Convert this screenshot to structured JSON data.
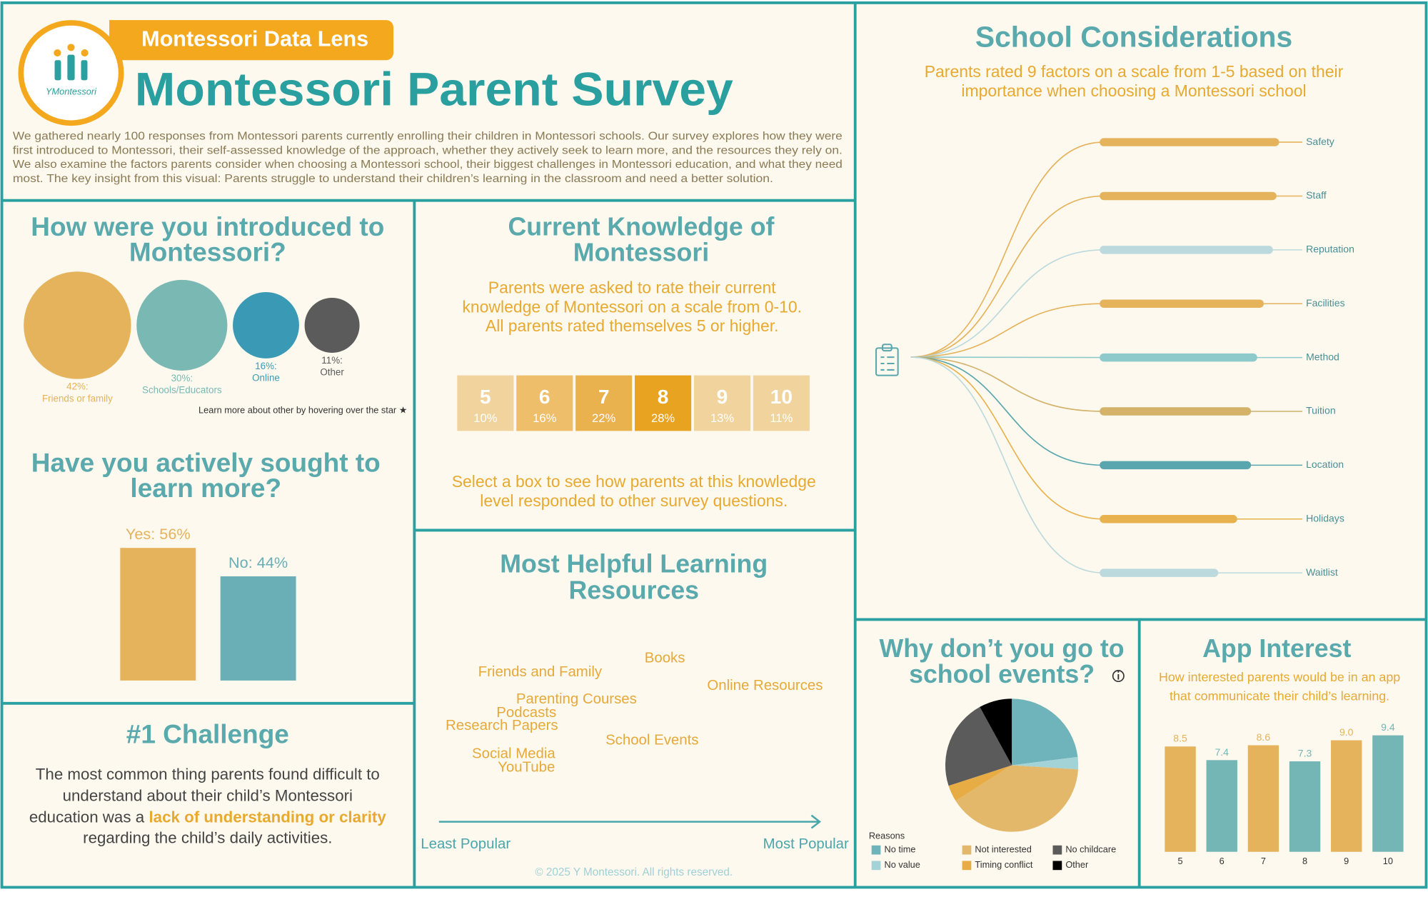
{
  "header": {
    "badge": "Montessori Data Lens",
    "title": "Montessori Parent Survey",
    "logo": "YMontessori",
    "intro": [
      "We gathered nearly 100 responses from Montessori parents currently enrolling their children in Montessori schools. Our survey explores how they were",
      "first introduced to Montessori, their self-assessed knowledge of the approach, whether they actively seek to learn more, and the resources they rely on.",
      "We also examine the factors parents consider when choosing a Montessori school, their biggest challenges in Montessori education, and what they need",
      "most. The key insight from this visual: Parents struggle to understand their children’s learning in the classroom and need a better solution."
    ]
  },
  "challenge": {
    "title": "#1 Challenge",
    "lines": [
      "The most common thing parents found difficult to",
      "understand about their child’s Montessori"
    ],
    "lead": "education was a",
    "highlight": "lack of understanding or clarity",
    "tail": "regarding the child’s daily activities."
  },
  "footer": "© 2025 Y Montessori. All rights reserved.",
  "chart_data": [
    {
      "type": "bubble",
      "title": [
        "How were you introduced to",
        "Montessori?"
      ],
      "categories": [
        "Friends or family",
        "Schools/Educators",
        "Online",
        "Other"
      ],
      "values": [
        42,
        30,
        16,
        11
      ],
      "value_labels": [
        "42%:",
        "30%:",
        "16%:",
        "11%:"
      ],
      "colors": [
        "#e5b35c",
        "#79b8b3",
        "#3a9ab5",
        "#5b5b5b"
      ],
      "note": "Learn more about other by hovering over the star ★"
    },
    {
      "type": "bar",
      "title": [
        "Have you actively sought to",
        "learn more?"
      ],
      "values": [
        56,
        44
      ],
      "value_labels": [
        "Yes: 56%",
        "No: 44%"
      ],
      "colors": [
        "#e5b35c",
        "#6aafb5"
      ]
    },
    {
      "type": "heatmap",
      "title": [
        "Current Knowledge of",
        "Montessori"
      ],
      "subtitle": [
        "Parents were asked to rate their current",
        "knowledge of Montessori on a scale from 0-10.",
        "All parents rated themselves 5 or higher."
      ],
      "categories": [
        "5",
        "6",
        "7",
        "8",
        "9",
        "10"
      ],
      "values": [
        10,
        16,
        22,
        28,
        13,
        11
      ],
      "value_labels": [
        "10%",
        "16%",
        "22%",
        "28%",
        "13%",
        "11%"
      ],
      "colors": [
        "#f1d49d",
        "#eebe6a",
        "#eab14f",
        "#e8a321",
        "#f1d49d",
        "#f1d49d"
      ],
      "note": [
        "Select a box to see how parents at this knowledge",
        "level responded to other survey questions."
      ]
    },
    {
      "type": "wordcloud",
      "title": [
        "Most Helpful Learning",
        "Resources"
      ],
      "words": [
        "Books",
        "Friends and Family",
        "Online Resources",
        "Parenting Courses",
        "Podcasts",
        "Research Papers",
        "School Events",
        "Social Media",
        "YouTube"
      ],
      "x_label_left": "Least Popular",
      "x_label_right": "Most Popular"
    },
    {
      "type": "bar",
      "orientation": "horizontal",
      "title": "School Considerations",
      "subtitle": [
        "Parents rated 9 factors on a scale from 1-5 based on their",
        "importance when choosing a Montessori school"
      ],
      "categories": [
        "Safety",
        "Staff",
        "Reputation",
        "Facilities",
        "Method",
        "Tuition",
        "Location",
        "Holidays",
        "Waitlist"
      ],
      "values": [
        4.7,
        4.63,
        4.53,
        4.28,
        4.1,
        3.93,
        3.93,
        3.55,
        3.03
      ],
      "colors": [
        "#e5b35c",
        "#e5b35c",
        "#bcd9dd",
        "#e5b35c",
        "#8ec9cc",
        "#d4b26a",
        "#5aa6ae",
        "#e8b24e",
        "#bcd9dd"
      ]
    },
    {
      "type": "pie",
      "title": [
        "Why don’t you go to",
        "school events?"
      ],
      "legend_title": "Reasons",
      "categories": [
        "No time",
        "No value",
        "Not interested",
        "Timing conflict",
        "No childcare",
        "Other"
      ],
      "values": [
        23,
        3,
        40,
        4,
        22,
        8
      ],
      "colors": [
        "#6fb3bb",
        "#a3d2d7",
        "#e3b86b",
        "#e8ac44",
        "#5b5b5b",
        "#000000"
      ]
    },
    {
      "type": "bar",
      "title": "App Interest",
      "subtitle": [
        "How interested parents would be in an app",
        "that communicate their child’s learning."
      ],
      "categories": [
        "5",
        "6",
        "7",
        "8",
        "9",
        "10"
      ],
      "values": [
        8.5,
        7.4,
        8.6,
        7.3,
        9.0,
        9.4
      ],
      "value_labels": [
        "8.5",
        "7.4",
        "8.6",
        "7.3",
        "9.0",
        "9.4"
      ],
      "colors": [
        "#e5b35c",
        "#74b5b5",
        "#e5b35c",
        "#74b5b5",
        "#e5b35c",
        "#74b5b5"
      ]
    }
  ]
}
